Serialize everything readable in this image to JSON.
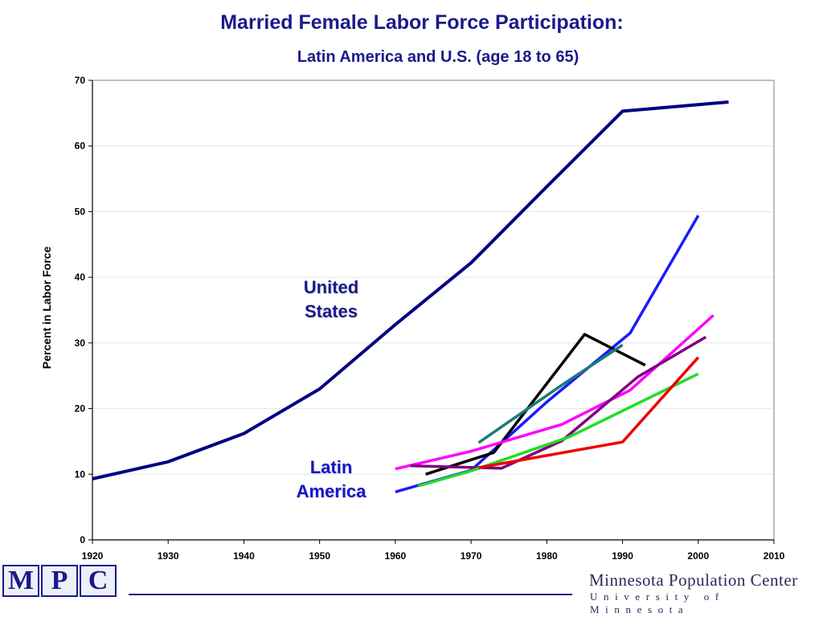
{
  "chart_data": {
    "type": "line",
    "title": "Married Female Labor Force Participation:",
    "subtitle": "Latin America and U.S.  (age 18 to 65)",
    "xlabel": "",
    "ylabel": "Percent in Labor Force",
    "xlim": [
      1920,
      2010
    ],
    "ylim": [
      0,
      70
    ],
    "xticks": [
      1920,
      1930,
      1940,
      1950,
      1960,
      1970,
      1980,
      1990,
      2000,
      2010
    ],
    "yticks": [
      0,
      10,
      20,
      30,
      40,
      50,
      60,
      70
    ],
    "grid": true,
    "annotations": [
      {
        "id": "us",
        "text_line1": "United",
        "text_line2": "States"
      },
      {
        "id": "la",
        "text_line1": "Latin",
        "text_line2": "America"
      }
    ],
    "series": [
      {
        "color": "#000080",
        "x": [
          1920,
          1930,
          1940,
          1950,
          1960,
          1970,
          1980,
          1990,
          2000,
          2004
        ],
        "y": [
          9.3,
          11.9,
          16.2,
          23.0,
          32.8,
          42.2,
          53.8,
          65.3,
          66.3,
          66.7
        ]
      },
      {
        "color": "#1a1aff",
        "x": [
          1960,
          1970,
          1980,
          1991,
          2000
        ],
        "y": [
          7.3,
          10.6,
          21.0,
          31.5,
          49.4
        ]
      },
      {
        "color": "#000000",
        "x": [
          1964,
          1973,
          1985,
          1993
        ],
        "y": [
          10.0,
          13.3,
          31.3,
          26.6
        ]
      },
      {
        "color": "#1a7a7a",
        "x": [
          1971,
          1982,
          1990
        ],
        "y": [
          14.8,
          23.6,
          29.7
        ]
      },
      {
        "color": "#ff00ff",
        "x": [
          1960,
          1970,
          1982,
          1991,
          2002
        ],
        "y": [
          10.8,
          13.5,
          17.6,
          22.8,
          34.2
        ]
      },
      {
        "color": "#800080",
        "x": [
          1962,
          1974,
          1982,
          1992,
          2001
        ],
        "y": [
          11.3,
          10.9,
          15.1,
          24.8,
          30.9
        ]
      },
      {
        "color": "#22dd22",
        "x": [
          1963,
          1970,
          1983,
          2000
        ],
        "y": [
          8.2,
          10.5,
          15.7,
          25.3
        ]
      },
      {
        "color": "#ee0000",
        "x": [
          1971,
          1990,
          2000
        ],
        "y": [
          11.0,
          14.9,
          27.8
        ]
      }
    ]
  },
  "footer": {
    "logo_letters": [
      "M",
      "P",
      "C"
    ],
    "org_name": "Minnesota Population Center",
    "org_subtitle": "University of Minnesota"
  }
}
